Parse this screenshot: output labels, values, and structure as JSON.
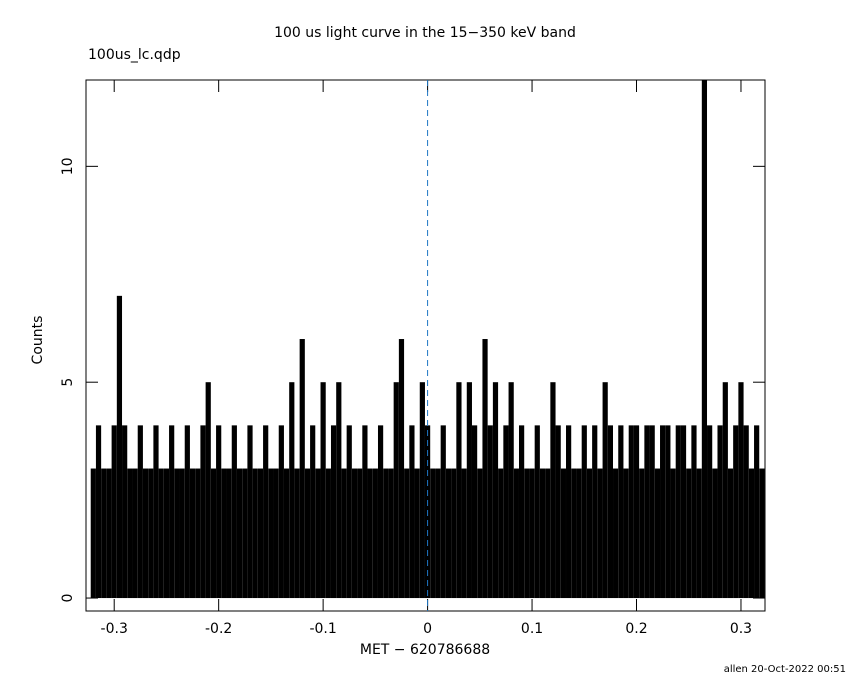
{
  "chart_data": {
    "type": "spikes",
    "title": "100 us light curve in the 15−350 keV band",
    "subtitle": "100us_lc.qdp",
    "xlabel": "MET − 620786688",
    "ylabel": "Counts",
    "footer": "allen 20-Oct-2022 00:51",
    "color": "#000000",
    "vline": 0,
    "vline_color": "#1f77c4",
    "xlim": [
      -0.327,
      0.323
    ],
    "ylim": [
      -0.3,
      12
    ],
    "xticks": [
      -0.3,
      -0.2,
      -0.1,
      0,
      0.1,
      0.2,
      0.3
    ],
    "yticks": [
      0,
      5,
      10
    ],
    "x": [
      -0.32,
      -0.315,
      -0.31,
      -0.305,
      -0.3,
      -0.295,
      -0.29,
      -0.285,
      -0.28,
      -0.275,
      -0.27,
      -0.265,
      -0.26,
      -0.255,
      -0.25,
      -0.245,
      -0.24,
      -0.235,
      -0.23,
      -0.225,
      -0.22,
      -0.215,
      -0.21,
      -0.205,
      -0.2,
      -0.195,
      -0.19,
      -0.185,
      -0.18,
      -0.175,
      -0.17,
      -0.165,
      -0.16,
      -0.155,
      -0.15,
      -0.145,
      -0.14,
      -0.135,
      -0.13,
      -0.125,
      -0.12,
      -0.115,
      -0.11,
      -0.105,
      -0.1,
      -0.095,
      -0.09,
      -0.085,
      -0.08,
      -0.075,
      -0.07,
      -0.065,
      -0.06,
      -0.055,
      -0.05,
      -0.045,
      -0.04,
      -0.035,
      -0.03,
      -0.025,
      -0.02,
      -0.015,
      -0.01,
      -0.005,
      0,
      0.005,
      0.01,
      0.015,
      0.02,
      0.025,
      0.03,
      0.035,
      0.04,
      0.045,
      0.05,
      0.055,
      0.06,
      0.065,
      0.07,
      0.075,
      0.08,
      0.085,
      0.09,
      0.095,
      0.1,
      0.105,
      0.11,
      0.115,
      0.12,
      0.125,
      0.13,
      0.135,
      0.14,
      0.145,
      0.15,
      0.155,
      0.16,
      0.165,
      0.17,
      0.175,
      0.18,
      0.185,
      0.19,
      0.195,
      0.2,
      0.205,
      0.21,
      0.215,
      0.22,
      0.225,
      0.23,
      0.235,
      0.24,
      0.245,
      0.25,
      0.255,
      0.26,
      0.265,
      0.27,
      0.275,
      0.28,
      0.285,
      0.29,
      0.295,
      0.3,
      0.305,
      0.31,
      0.315,
      0.32
    ],
    "values": [
      3,
      4,
      3,
      3,
      4,
      7,
      4,
      3,
      3,
      4,
      3,
      3,
      4,
      3,
      3,
      4,
      3,
      3,
      4,
      3,
      3,
      4,
      5,
      3,
      4,
      3,
      3,
      4,
      3,
      3,
      4,
      3,
      3,
      4,
      3,
      3,
      4,
      3,
      5,
      3,
      6,
      3,
      4,
      3,
      5,
      3,
      4,
      5,
      3,
      4,
      3,
      3,
      4,
      3,
      3,
      4,
      3,
      3,
      5,
      6,
      3,
      4,
      3,
      5,
      4,
      3,
      3,
      4,
      3,
      3,
      5,
      3,
      5,
      4,
      3,
      6,
      4,
      5,
      3,
      4,
      5,
      3,
      4,
      3,
      3,
      4,
      3,
      3,
      5,
      4,
      3,
      4,
      3,
      3,
      4,
      3,
      4,
      3,
      5,
      4,
      3,
      4,
      3,
      4,
      4,
      3,
      4,
      4,
      3,
      4,
      4,
      3,
      4,
      4,
      3,
      4,
      3,
      12,
      4,
      3,
      4,
      5,
      3,
      4,
      5,
      4,
      3,
      4,
      3
    ]
  }
}
